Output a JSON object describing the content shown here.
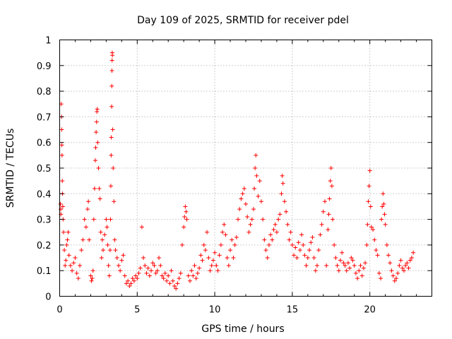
{
  "chart_data": {
    "type": "scatter",
    "title": "Day 109 of 2025, SRMTID for receiver pdel",
    "xlabel": "GPS time / hours",
    "ylabel": "SRMTID / TECUs",
    "xlim": [
      0,
      24
    ],
    "ylim": [
      0,
      1
    ],
    "xticks": [
      0,
      5,
      10,
      15,
      20
    ],
    "xtick_labels": [
      "0",
      "5",
      "10",
      "15",
      "20"
    ],
    "yticks": [
      0,
      0.1,
      0.2,
      0.3,
      0.4,
      0.5,
      0.6,
      0.7,
      0.8,
      0.9,
      1
    ],
    "ytick_labels": [
      "0",
      "0.1",
      "0.2",
      "0.3",
      "0.4",
      "0.5",
      "0.6",
      "0.7",
      "0.8",
      "0.9",
      "1"
    ],
    "grid": true,
    "marker": "+",
    "color": "#ff0000",
    "series": [
      {
        "name": "SRMTID",
        "points": [
          [
            0.05,
            0.36
          ],
          [
            0.07,
            0.34
          ],
          [
            0.08,
            0.32
          ],
          [
            0.1,
            0.75
          ],
          [
            0.12,
            0.7
          ],
          [
            0.13,
            0.65
          ],
          [
            0.14,
            0.59
          ],
          [
            0.15,
            0.55
          ],
          [
            0.17,
            0.45
          ],
          [
            0.18,
            0.4
          ],
          [
            0.2,
            0.35
          ],
          [
            0.22,
            0.3
          ],
          [
            0.25,
            0.25
          ],
          [
            0.3,
            0.18
          ],
          [
            0.35,
            0.12
          ],
          [
            0.4,
            0.14
          ],
          [
            0.45,
            0.2
          ],
          [
            0.5,
            0.22
          ],
          [
            0.55,
            0.25
          ],
          [
            0.6,
            0.16
          ],
          [
            0.7,
            0.12
          ],
          [
            0.8,
            0.1
          ],
          [
            0.9,
            0.13
          ],
          [
            1.0,
            0.15
          ],
          [
            1.1,
            0.09
          ],
          [
            1.2,
            0.07
          ],
          [
            1.3,
            0.12
          ],
          [
            1.4,
            0.18
          ],
          [
            1.5,
            0.22
          ],
          [
            1.6,
            0.3
          ],
          [
            1.7,
            0.27
          ],
          [
            1.8,
            0.34
          ],
          [
            1.85,
            0.37
          ],
          [
            1.9,
            0.22
          ],
          [
            2.0,
            0.08
          ],
          [
            2.05,
            0.06
          ],
          [
            2.1,
            0.07
          ],
          [
            2.15,
            0.1
          ],
          [
            2.2,
            0.3
          ],
          [
            2.25,
            0.42
          ],
          [
            2.3,
            0.53
          ],
          [
            2.32,
            0.58
          ],
          [
            2.35,
            0.64
          ],
          [
            2.38,
            0.68
          ],
          [
            2.4,
            0.72
          ],
          [
            2.42,
            0.73
          ],
          [
            2.45,
            0.6
          ],
          [
            2.5,
            0.5
          ],
          [
            2.55,
            0.42
          ],
          [
            2.6,
            0.38
          ],
          [
            2.65,
            0.25
          ],
          [
            2.7,
            0.15
          ],
          [
            2.75,
            0.22
          ],
          [
            2.8,
            0.18
          ],
          [
            2.9,
            0.24
          ],
          [
            3.0,
            0.3
          ],
          [
            3.05,
            0.27
          ],
          [
            3.1,
            0.2
          ],
          [
            3.15,
            0.12
          ],
          [
            3.2,
            0.08
          ],
          [
            3.25,
            0.18
          ],
          [
            3.28,
            0.3
          ],
          [
            3.3,
            0.43
          ],
          [
            3.32,
            0.55
          ],
          [
            3.33,
            0.62
          ],
          [
            3.35,
            0.74
          ],
          [
            3.36,
            0.82
          ],
          [
            3.37,
            0.88
          ],
          [
            3.38,
            0.92
          ],
          [
            3.39,
            0.95
          ],
          [
            3.4,
            0.94
          ],
          [
            3.42,
            0.65
          ],
          [
            3.45,
            0.5
          ],
          [
            3.5,
            0.37
          ],
          [
            3.55,
            0.22
          ],
          [
            3.6,
            0.18
          ],
          [
            3.7,
            0.15
          ],
          [
            3.8,
            0.12
          ],
          [
            3.9,
            0.1
          ],
          [
            4.0,
            0.14
          ],
          [
            4.1,
            0.16
          ],
          [
            4.2,
            0.08
          ],
          [
            4.3,
            0.05
          ],
          [
            4.4,
            0.06
          ],
          [
            4.5,
            0.04
          ],
          [
            4.6,
            0.05
          ],
          [
            4.7,
            0.07
          ],
          [
            4.8,
            0.06
          ],
          [
            4.9,
            0.08
          ],
          [
            5.0,
            0.07
          ],
          [
            5.1,
            0.09
          ],
          [
            5.2,
            0.11
          ],
          [
            5.3,
            0.27
          ],
          [
            5.4,
            0.15
          ],
          [
            5.5,
            0.12
          ],
          [
            5.6,
            0.09
          ],
          [
            5.7,
            0.11
          ],
          [
            5.8,
            0.08
          ],
          [
            5.9,
            0.1
          ],
          [
            6.0,
            0.13
          ],
          [
            6.1,
            0.12
          ],
          [
            6.2,
            0.09
          ],
          [
            6.3,
            0.1
          ],
          [
            6.4,
            0.15
          ],
          [
            6.5,
            0.12
          ],
          [
            6.6,
            0.08
          ],
          [
            6.7,
            0.07
          ],
          [
            6.8,
            0.09
          ],
          [
            6.9,
            0.06
          ],
          [
            7.0,
            0.08
          ],
          [
            7.1,
            0.05
          ],
          [
            7.2,
            0.1
          ],
          [
            7.3,
            0.06
          ],
          [
            7.4,
            0.04
          ],
          [
            7.5,
            0.03
          ],
          [
            7.6,
            0.05
          ],
          [
            7.7,
            0.07
          ],
          [
            7.8,
            0.09
          ],
          [
            7.9,
            0.2
          ],
          [
            8.0,
            0.27
          ],
          [
            8.05,
            0.31
          ],
          [
            8.1,
            0.35
          ],
          [
            8.15,
            0.33
          ],
          [
            8.2,
            0.3
          ],
          [
            8.3,
            0.08
          ],
          [
            8.4,
            0.06
          ],
          [
            8.5,
            0.1
          ],
          [
            8.6,
            0.08
          ],
          [
            8.7,
            0.12
          ],
          [
            8.8,
            0.07
          ],
          [
            8.9,
            0.09
          ],
          [
            9.0,
            0.11
          ],
          [
            9.1,
            0.16
          ],
          [
            9.2,
            0.14
          ],
          [
            9.3,
            0.2
          ],
          [
            9.4,
            0.18
          ],
          [
            9.5,
            0.25
          ],
          [
            9.6,
            0.15
          ],
          [
            9.7,
            0.1
          ],
          [
            9.8,
            0.12
          ],
          [
            9.9,
            0.14
          ],
          [
            10.0,
            0.17
          ],
          [
            10.1,
            0.12
          ],
          [
            10.2,
            0.1
          ],
          [
            10.3,
            0.16
          ],
          [
            10.4,
            0.2
          ],
          [
            10.5,
            0.25
          ],
          [
            10.6,
            0.28
          ],
          [
            10.7,
            0.24
          ],
          [
            10.8,
            0.15
          ],
          [
            10.9,
            0.12
          ],
          [
            11.0,
            0.18
          ],
          [
            11.1,
            0.22
          ],
          [
            11.2,
            0.15
          ],
          [
            11.3,
            0.2
          ],
          [
            11.4,
            0.23
          ],
          [
            11.5,
            0.3
          ],
          [
            11.6,
            0.34
          ],
          [
            11.7,
            0.38
          ],
          [
            11.8,
            0.4
          ],
          [
            11.9,
            0.42
          ],
          [
            12.0,
            0.36
          ],
          [
            12.1,
            0.31
          ],
          [
            12.2,
            0.25
          ],
          [
            12.3,
            0.28
          ],
          [
            12.4,
            0.3
          ],
          [
            12.5,
            0.34
          ],
          [
            12.55,
            0.42
          ],
          [
            12.6,
            0.5
          ],
          [
            12.65,
            0.55
          ],
          [
            12.7,
            0.47
          ],
          [
            12.8,
            0.39
          ],
          [
            12.9,
            0.45
          ],
          [
            13.0,
            0.37
          ],
          [
            13.1,
            0.3
          ],
          [
            13.2,
            0.22
          ],
          [
            13.3,
            0.18
          ],
          [
            13.4,
            0.15
          ],
          [
            13.5,
            0.2
          ],
          [
            13.6,
            0.24
          ],
          [
            13.7,
            0.22
          ],
          [
            13.8,
            0.26
          ],
          [
            13.9,
            0.28
          ],
          [
            14.0,
            0.25
          ],
          [
            14.1,
            0.3
          ],
          [
            14.2,
            0.32
          ],
          [
            14.3,
            0.4
          ],
          [
            14.35,
            0.47
          ],
          [
            14.4,
            0.44
          ],
          [
            14.5,
            0.37
          ],
          [
            14.6,
            0.33
          ],
          [
            14.7,
            0.28
          ],
          [
            14.8,
            0.22
          ],
          [
            14.9,
            0.25
          ],
          [
            15.0,
            0.2
          ],
          [
            15.1,
            0.16
          ],
          [
            15.2,
            0.19
          ],
          [
            15.3,
            0.15
          ],
          [
            15.4,
            0.21
          ],
          [
            15.5,
            0.18
          ],
          [
            15.6,
            0.24
          ],
          [
            15.7,
            0.2
          ],
          [
            15.8,
            0.16
          ],
          [
            15.9,
            0.12
          ],
          [
            16.0,
            0.15
          ],
          [
            16.1,
            0.18
          ],
          [
            16.2,
            0.21
          ],
          [
            16.3,
            0.23
          ],
          [
            16.4,
            0.15
          ],
          [
            16.5,
            0.1
          ],
          [
            16.6,
            0.12
          ],
          [
            16.7,
            0.18
          ],
          [
            16.8,
            0.24
          ],
          [
            16.9,
            0.28
          ],
          [
            17.0,
            0.33
          ],
          [
            17.1,
            0.37
          ],
          [
            17.2,
            0.12
          ],
          [
            17.3,
            0.26
          ],
          [
            17.35,
            0.32
          ],
          [
            17.4,
            0.38
          ],
          [
            17.45,
            0.45
          ],
          [
            17.5,
            0.5
          ],
          [
            17.55,
            0.43
          ],
          [
            17.6,
            0.3
          ],
          [
            17.7,
            0.2
          ],
          [
            17.8,
            0.15
          ],
          [
            17.9,
            0.12
          ],
          [
            18.0,
            0.1
          ],
          [
            18.1,
            0.14
          ],
          [
            18.2,
            0.17
          ],
          [
            18.3,
            0.13
          ],
          [
            18.4,
            0.12
          ],
          [
            18.5,
            0.1
          ],
          [
            18.6,
            0.13
          ],
          [
            18.7,
            0.11
          ],
          [
            18.8,
            0.15
          ],
          [
            18.9,
            0.14
          ],
          [
            19.0,
            0.12
          ],
          [
            19.1,
            0.09
          ],
          [
            19.2,
            0.07
          ],
          [
            19.3,
            0.1
          ],
          [
            19.4,
            0.12
          ],
          [
            19.5,
            0.08
          ],
          [
            19.6,
            0.11
          ],
          [
            19.7,
            0.13
          ],
          [
            19.8,
            0.2
          ],
          [
            19.85,
            0.28
          ],
          [
            19.9,
            0.37
          ],
          [
            19.95,
            0.43
          ],
          [
            20.0,
            0.49
          ],
          [
            20.05,
            0.35
          ],
          [
            20.1,
            0.27
          ],
          [
            20.2,
            0.26
          ],
          [
            20.3,
            0.22
          ],
          [
            20.4,
            0.18
          ],
          [
            20.5,
            0.16
          ],
          [
            20.6,
            0.09
          ],
          [
            20.7,
            0.07
          ],
          [
            20.75,
            0.3
          ],
          [
            20.8,
            0.35
          ],
          [
            20.85,
            0.4
          ],
          [
            20.9,
            0.36
          ],
          [
            20.95,
            0.32
          ],
          [
            21.0,
            0.28
          ],
          [
            21.1,
            0.2
          ],
          [
            21.2,
            0.16
          ],
          [
            21.3,
            0.13
          ],
          [
            21.4,
            0.1
          ],
          [
            21.5,
            0.08
          ],
          [
            21.6,
            0.06
          ],
          [
            21.7,
            0.07
          ],
          [
            21.8,
            0.09
          ],
          [
            21.9,
            0.12
          ],
          [
            22.0,
            0.14
          ],
          [
            22.1,
            0.11
          ],
          [
            22.2,
            0.1
          ],
          [
            22.3,
            0.12
          ],
          [
            22.4,
            0.13
          ],
          [
            22.5,
            0.11
          ],
          [
            22.6,
            0.14
          ],
          [
            22.7,
            0.15
          ],
          [
            22.8,
            0.17
          ]
        ]
      }
    ]
  }
}
